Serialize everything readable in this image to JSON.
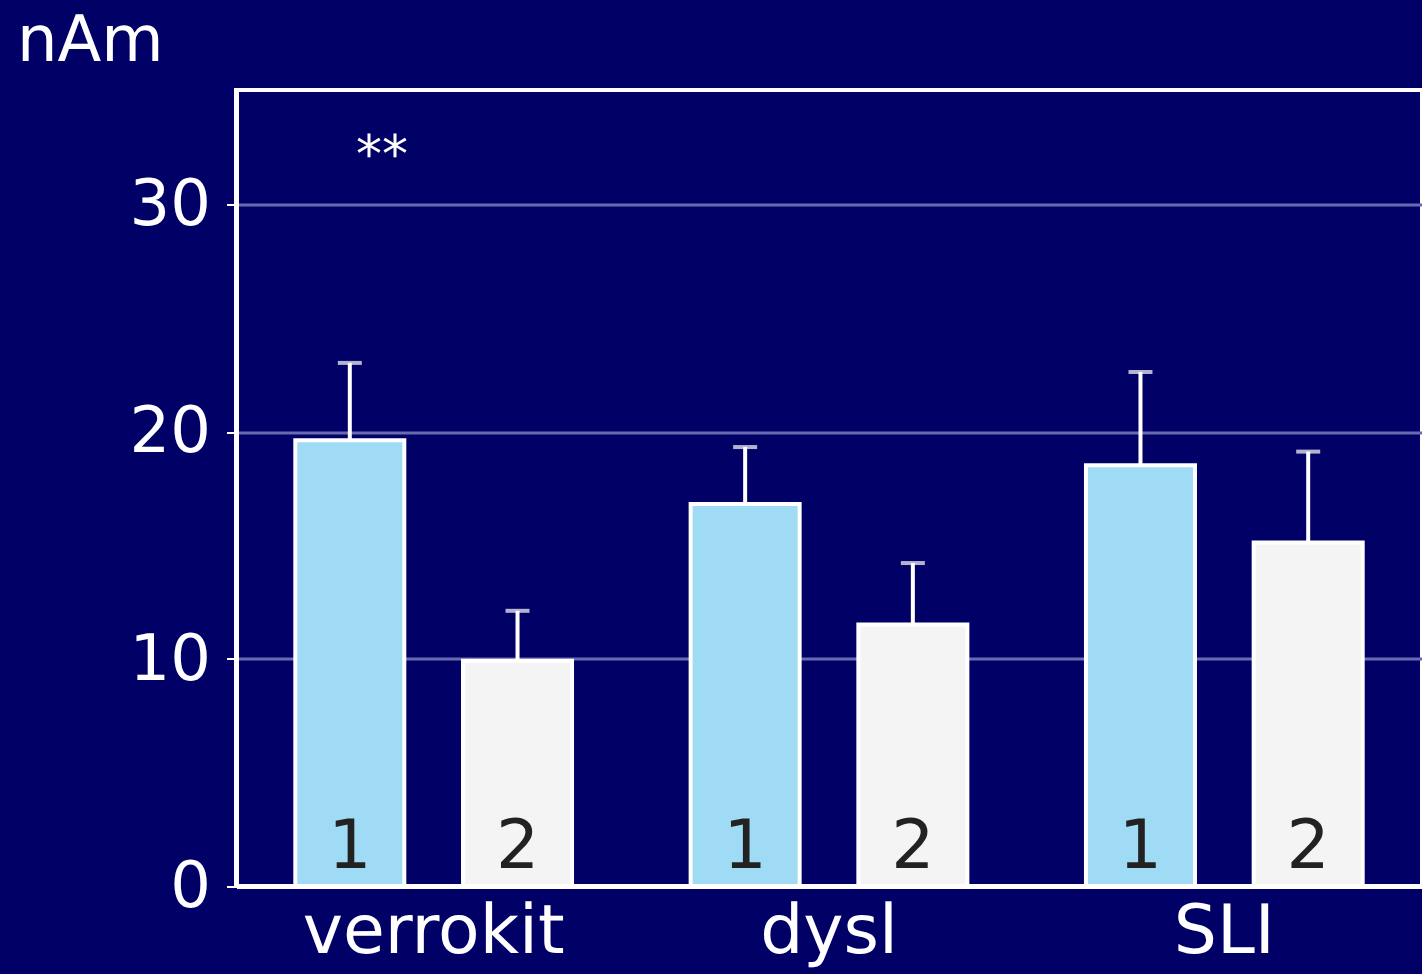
{
  "chart_data": {
    "type": "bar",
    "ylabel": "nAm",
    "categories": [
      "verrokit",
      "dysl",
      "SLI"
    ],
    "series": [
      {
        "name": "1",
        "color": "#a0dbf5",
        "values": [
          19.6,
          16.8,
          18.5
        ],
        "errors": [
          [
            19.6,
            23.0
          ],
          [
            16.8,
            19.3
          ],
          [
            18.5,
            22.6
          ]
        ]
      },
      {
        "name": "2",
        "color": "#f4f4f4",
        "values": [
          9.9,
          11.5,
          15.1
        ],
        "errors": [
          [
            9.9,
            12.1
          ],
          [
            11.5,
            14.2
          ],
          [
            15.1,
            19.1
          ]
        ]
      }
    ],
    "ylim": [
      0,
      35
    ],
    "yticks": [
      0,
      10,
      20,
      30
    ],
    "grid": "y",
    "legend": false,
    "annotations": [
      "**"
    ]
  }
}
